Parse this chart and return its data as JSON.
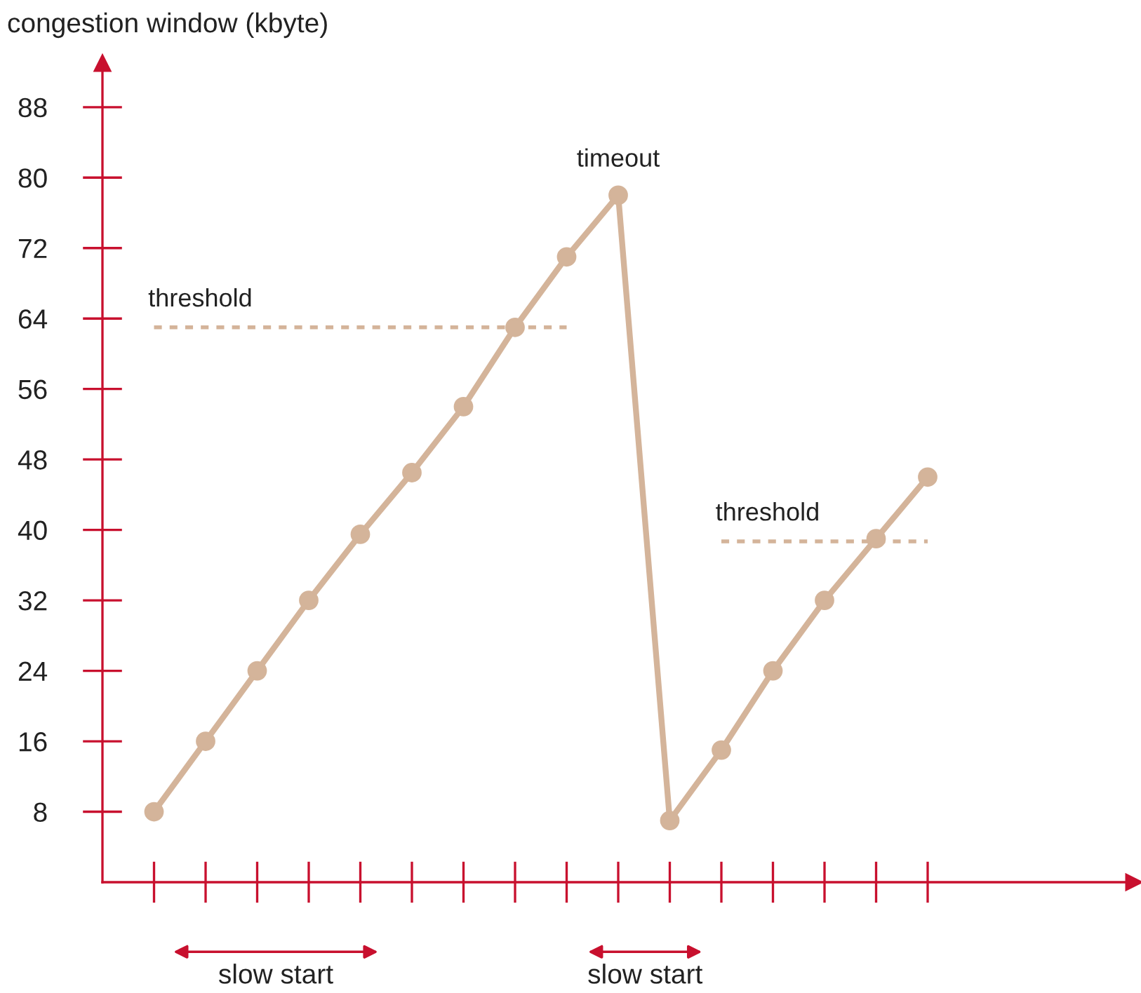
{
  "chart_data": {
    "type": "line",
    "ylabel": "congestion window (kbyte)",
    "categories": [
      null,
      null,
      null,
      null,
      null,
      null,
      null,
      null,
      null,
      null,
      null,
      null,
      null,
      null,
      null,
      null
    ],
    "series": [
      {
        "color": "#d4b49a",
        "marker": "circle",
        "line_style": "solid",
        "values": [
          8,
          16,
          24,
          32,
          39.5,
          46.5,
          54,
          63,
          71,
          78,
          7,
          15,
          24,
          32,
          39,
          46
        ]
      },
      {
        "name": "threshold",
        "color": "#d4b49a",
        "marker": "none",
        "line_style": "dashed",
        "values": [
          63,
          63,
          63,
          63,
          63,
          63,
          63,
          63,
          63,
          null,
          null,
          null,
          null,
          null,
          null,
          null
        ]
      },
      {
        "name": "threshold",
        "color": "#d4b49a",
        "marker": "none",
        "line_style": "dashed",
        "values": [
          null,
          null,
          null,
          null,
          null,
          null,
          null,
          null,
          null,
          null,
          null,
          38.7,
          38.7,
          38.7,
          38.7,
          38.7
        ]
      }
    ],
    "annotations": [
      "timeout",
      "slow start",
      "slow start"
    ],
    "ylim": [
      0,
      93
    ],
    "yticks": [
      8,
      16,
      24,
      32,
      40,
      48,
      56,
      64,
      72,
      80,
      88
    ],
    "tick_labels": "y",
    "grid": false,
    "legend": false
  }
}
